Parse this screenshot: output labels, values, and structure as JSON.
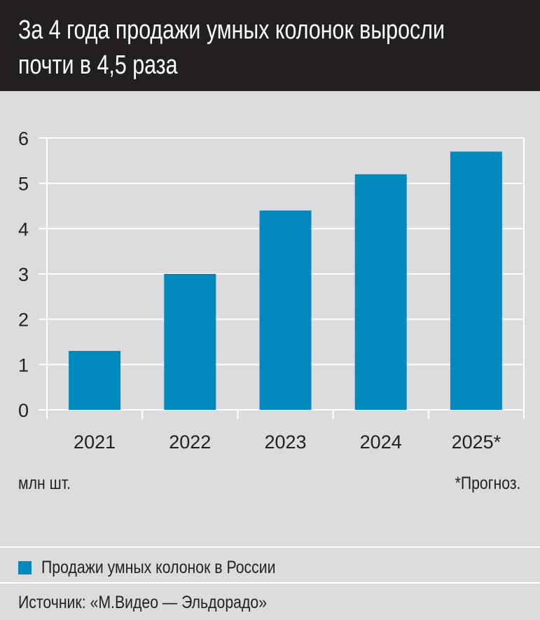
{
  "title": [
    "За 4 года продажи умных колонок выросли",
    "почти в 4,5 раза"
  ],
  "chart_data": {
    "type": "bar",
    "categories": [
      "2021",
      "2022",
      "2023",
      "2024",
      "2025*"
    ],
    "series": [
      {
        "name": "Продажи умных колонок в России",
        "values": [
          1.3,
          3.0,
          4.4,
          5.2,
          5.7
        ],
        "color": "#0089bd"
      }
    ],
    "ylabel": "млн шт.",
    "ylim": [
      0,
      6
    ],
    "yticks": [
      "0",
      "1",
      "2",
      "3",
      "4",
      "5",
      "6"
    ],
    "grid": true,
    "legend": "bottom",
    "annotation": "*Прогноз."
  },
  "source": "Источник: «М.Видео — Эльдорадо»",
  "colors": {
    "bar": "#0089bd",
    "background": "#dcdcdf",
    "title_band": "#231f20",
    "grid": "#ffffff"
  }
}
